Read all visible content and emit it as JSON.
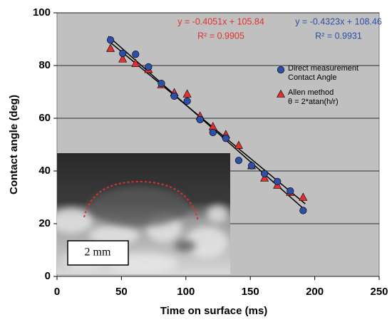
{
  "chart_data": {
    "type": "scatter",
    "xlabel": "Time on surface (ms)",
    "ylabel": "Contact angle (deg)",
    "xlim": [
      0,
      250
    ],
    "xticks": [
      0,
      50,
      100,
      150,
      200,
      250
    ],
    "ylim": [
      0,
      100
    ],
    "yticks": [
      0,
      20,
      40,
      60,
      80,
      100
    ],
    "grid": true,
    "x": [
      41.5,
      51,
      61,
      71,
      81,
      91,
      101,
      111,
      121,
      131,
      141,
      151,
      161,
      171,
      181,
      191
    ],
    "series": [
      {
        "name": "Direct measurement\nContact Angle",
        "color": "#2e4fa8",
        "marker": "circle",
        "values": [
          89.7,
          84.6,
          84.3,
          79.5,
          73.2,
          68.4,
          66.5,
          59.5,
          54.6,
          52.4,
          44,
          42,
          39,
          36,
          32.4,
          25
        ],
        "trendline": {
          "equation": "y = -0.4323x + 108.46",
          "r2": "R² = 0.9931"
        }
      },
      {
        "name": "Allen method\nθ = 2*atan(h/r)",
        "color": "#e03030",
        "marker": "triangle",
        "values": [
          86.5,
          82.5,
          80.8,
          78.5,
          72.7,
          69.7,
          69.2,
          60.8,
          56.8,
          53.8,
          49.7,
          42,
          37.3,
          34.6,
          31.9,
          30
        ],
        "trendline": {
          "equation": "y = -0.4051x + 105.84",
          "r2": "R² = 0.9905"
        }
      }
    ],
    "inset_scale_label": "2 mm"
  }
}
